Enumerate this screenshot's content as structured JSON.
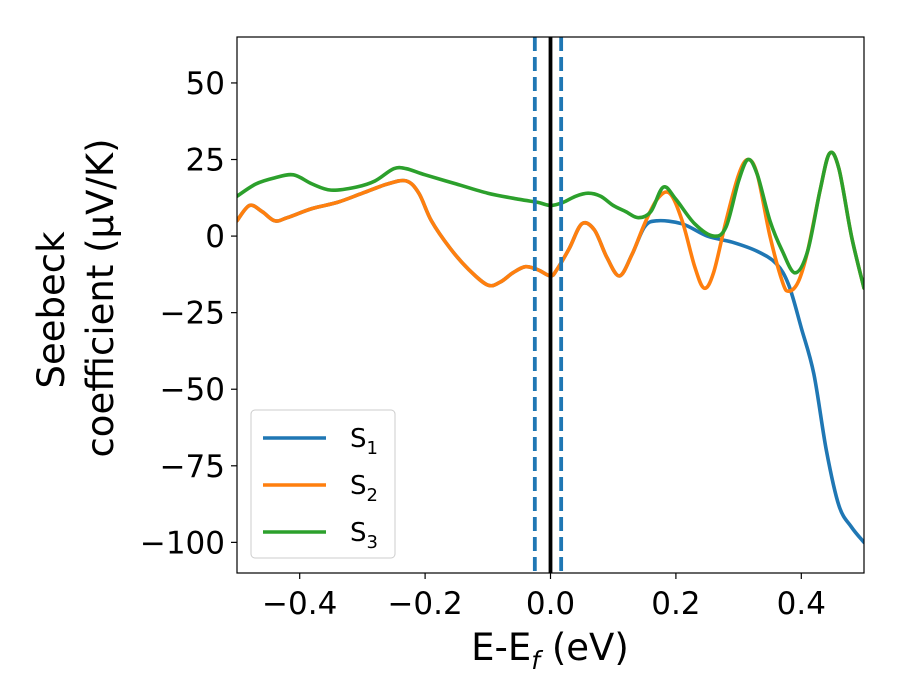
{
  "chart_data": {
    "type": "line",
    "xlabel": "E-E",
    "xlabel_sub": "f",
    "xlabel_unit": " (eV)",
    "ylabel_line1": "Seebeck",
    "ylabel_line2": "coefficient  (μV/K)",
    "xlim": [
      -0.5,
      0.5
    ],
    "ylim": [
      -110,
      65
    ],
    "x_ticks": [
      -0.4,
      -0.2,
      0.0,
      0.2,
      0.4
    ],
    "x_tick_labels": [
      "−0.4",
      "−0.2",
      "0.0",
      "0.2",
      "0.4"
    ],
    "y_ticks": [
      50,
      25,
      0,
      -25,
      -50,
      -75,
      -100
    ],
    "y_tick_labels": [
      "50",
      "25",
      "0",
      "−25",
      "−50",
      "−75",
      "−100"
    ],
    "grid": false,
    "legend_position": "lower-left",
    "vertical_lines": [
      {
        "x": 0.0,
        "color": "#000000",
        "style": "solid"
      },
      {
        "x": -0.025,
        "color": "#1f77b4",
        "style": "dashed"
      },
      {
        "x": 0.017,
        "color": "#1f77b4",
        "style": "dashed"
      }
    ],
    "series": [
      {
        "name": "S",
        "subscript": "1",
        "color": "#1f77b4",
        "points": [
          [
            -0.5,
            5
          ],
          [
            -0.48,
            10
          ],
          [
            -0.46,
            8
          ],
          [
            -0.44,
            5
          ],
          [
            -0.42,
            6
          ],
          [
            -0.38,
            9
          ],
          [
            -0.34,
            11
          ],
          [
            -0.3,
            14
          ],
          [
            -0.26,
            17
          ],
          [
            -0.23,
            18
          ],
          [
            -0.21,
            14
          ],
          [
            -0.19,
            5
          ],
          [
            -0.16,
            -4
          ],
          [
            -0.13,
            -11
          ],
          [
            -0.1,
            -16
          ],
          [
            -0.08,
            -15
          ],
          [
            -0.06,
            -12
          ],
          [
            -0.04,
            -10
          ],
          [
            -0.02,
            -11
          ],
          [
            0.0,
            -13
          ],
          [
            0.01,
            -11
          ],
          [
            0.03,
            -4
          ],
          [
            0.05,
            4
          ],
          [
            0.07,
            2
          ],
          [
            0.09,
            -7
          ],
          [
            0.11,
            -13
          ],
          [
            0.13,
            -6
          ],
          [
            0.15,
            3
          ],
          [
            0.17,
            5
          ],
          [
            0.21,
            4
          ],
          [
            0.25,
            0
          ],
          [
            0.29,
            -2
          ],
          [
            0.33,
            -5
          ],
          [
            0.36,
            -9
          ],
          [
            0.38,
            -16
          ],
          [
            0.4,
            -30
          ],
          [
            0.42,
            -45
          ],
          [
            0.44,
            -70
          ],
          [
            0.46,
            -88
          ],
          [
            0.48,
            -95
          ],
          [
            0.5,
            -100
          ]
        ]
      },
      {
        "name": "S",
        "subscript": "2",
        "color": "#ff7f0e",
        "points": [
          [
            -0.5,
            5
          ],
          [
            -0.48,
            10
          ],
          [
            -0.46,
            8
          ],
          [
            -0.44,
            5
          ],
          [
            -0.42,
            6
          ],
          [
            -0.38,
            9
          ],
          [
            -0.34,
            11
          ],
          [
            -0.3,
            14
          ],
          [
            -0.26,
            17
          ],
          [
            -0.23,
            18
          ],
          [
            -0.21,
            14
          ],
          [
            -0.19,
            5
          ],
          [
            -0.16,
            -4
          ],
          [
            -0.13,
            -11
          ],
          [
            -0.1,
            -16
          ],
          [
            -0.08,
            -15
          ],
          [
            -0.06,
            -12
          ],
          [
            -0.04,
            -10
          ],
          [
            -0.02,
            -11
          ],
          [
            0.0,
            -13
          ],
          [
            0.01,
            -11
          ],
          [
            0.03,
            -4
          ],
          [
            0.05,
            4
          ],
          [
            0.07,
            2
          ],
          [
            0.09,
            -7
          ],
          [
            0.11,
            -13
          ],
          [
            0.13,
            -6
          ],
          [
            0.15,
            4
          ],
          [
            0.17,
            12
          ],
          [
            0.19,
            14
          ],
          [
            0.21,
            5
          ],
          [
            0.23,
            -10
          ],
          [
            0.245,
            -17
          ],
          [
            0.26,
            -12
          ],
          [
            0.28,
            5
          ],
          [
            0.3,
            20
          ],
          [
            0.315,
            25
          ],
          [
            0.33,
            20
          ],
          [
            0.35,
            0
          ],
          [
            0.37,
            -15
          ],
          [
            0.38,
            -18
          ],
          [
            0.395,
            -15
          ],
          [
            0.41,
            -5
          ],
          [
            0.43,
            15
          ],
          [
            0.445,
            27
          ],
          [
            0.46,
            22
          ],
          [
            0.48,
            0
          ],
          [
            0.5,
            -17
          ]
        ]
      },
      {
        "name": "S",
        "subscript": "3",
        "color": "#2ca02c",
        "points": [
          [
            -0.5,
            13
          ],
          [
            -0.47,
            17
          ],
          [
            -0.44,
            19
          ],
          [
            -0.41,
            20
          ],
          [
            -0.38,
            17
          ],
          [
            -0.35,
            15
          ],
          [
            -0.31,
            16
          ],
          [
            -0.28,
            18
          ],
          [
            -0.25,
            22
          ],
          [
            -0.23,
            22
          ],
          [
            -0.2,
            20
          ],
          [
            -0.15,
            17
          ],
          [
            -0.1,
            14
          ],
          [
            -0.05,
            12
          ],
          [
            -0.02,
            11
          ],
          [
            0.0,
            10
          ],
          [
            0.02,
            11
          ],
          [
            0.04,
            13
          ],
          [
            0.06,
            14
          ],
          [
            0.08,
            13
          ],
          [
            0.1,
            10
          ],
          [
            0.12,
            8
          ],
          [
            0.14,
            6
          ],
          [
            0.16,
            8
          ],
          [
            0.18,
            16
          ],
          [
            0.2,
            12
          ],
          [
            0.23,
            4
          ],
          [
            0.26,
            0
          ],
          [
            0.28,
            3
          ],
          [
            0.3,
            18
          ],
          [
            0.315,
            25
          ],
          [
            0.33,
            20
          ],
          [
            0.35,
            5
          ],
          [
            0.37,
            -5
          ],
          [
            0.39,
            -12
          ],
          [
            0.41,
            -5
          ],
          [
            0.43,
            15
          ],
          [
            0.445,
            27
          ],
          [
            0.46,
            22
          ],
          [
            0.48,
            0
          ],
          [
            0.5,
            -17
          ]
        ]
      }
    ]
  }
}
